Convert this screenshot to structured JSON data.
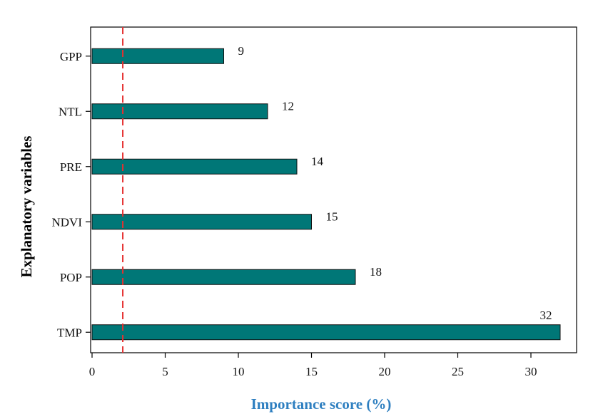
{
  "chart_data": {
    "type": "bar",
    "orientation": "horizontal",
    "categories": [
      "GPP",
      "NTL",
      "PRE",
      "NDVI",
      "POP",
      "TMP"
    ],
    "values": [
      9,
      12,
      14,
      15,
      18,
      32
    ],
    "data_labels": [
      "9",
      "12",
      "14",
      "15",
      "18",
      "32"
    ],
    "xlabel": "Importance score (%)",
    "ylabel": "Explanatory variables",
    "xlim": [
      0,
      34
    ],
    "xticks": [
      0,
      5,
      10,
      15,
      20,
      25,
      30
    ],
    "xtick_labels": [
      "0",
      "5",
      "10",
      "15",
      "20",
      "25",
      "30"
    ],
    "reference_line": {
      "x": 2.1,
      "style": "dashed"
    },
    "grid": false,
    "legend": "none",
    "colors": {
      "bar": "#007777",
      "bar_edge": "#111111",
      "reference_line": "#e53030",
      "xlabel": "#2e7fc0",
      "axis": "#000000"
    }
  }
}
